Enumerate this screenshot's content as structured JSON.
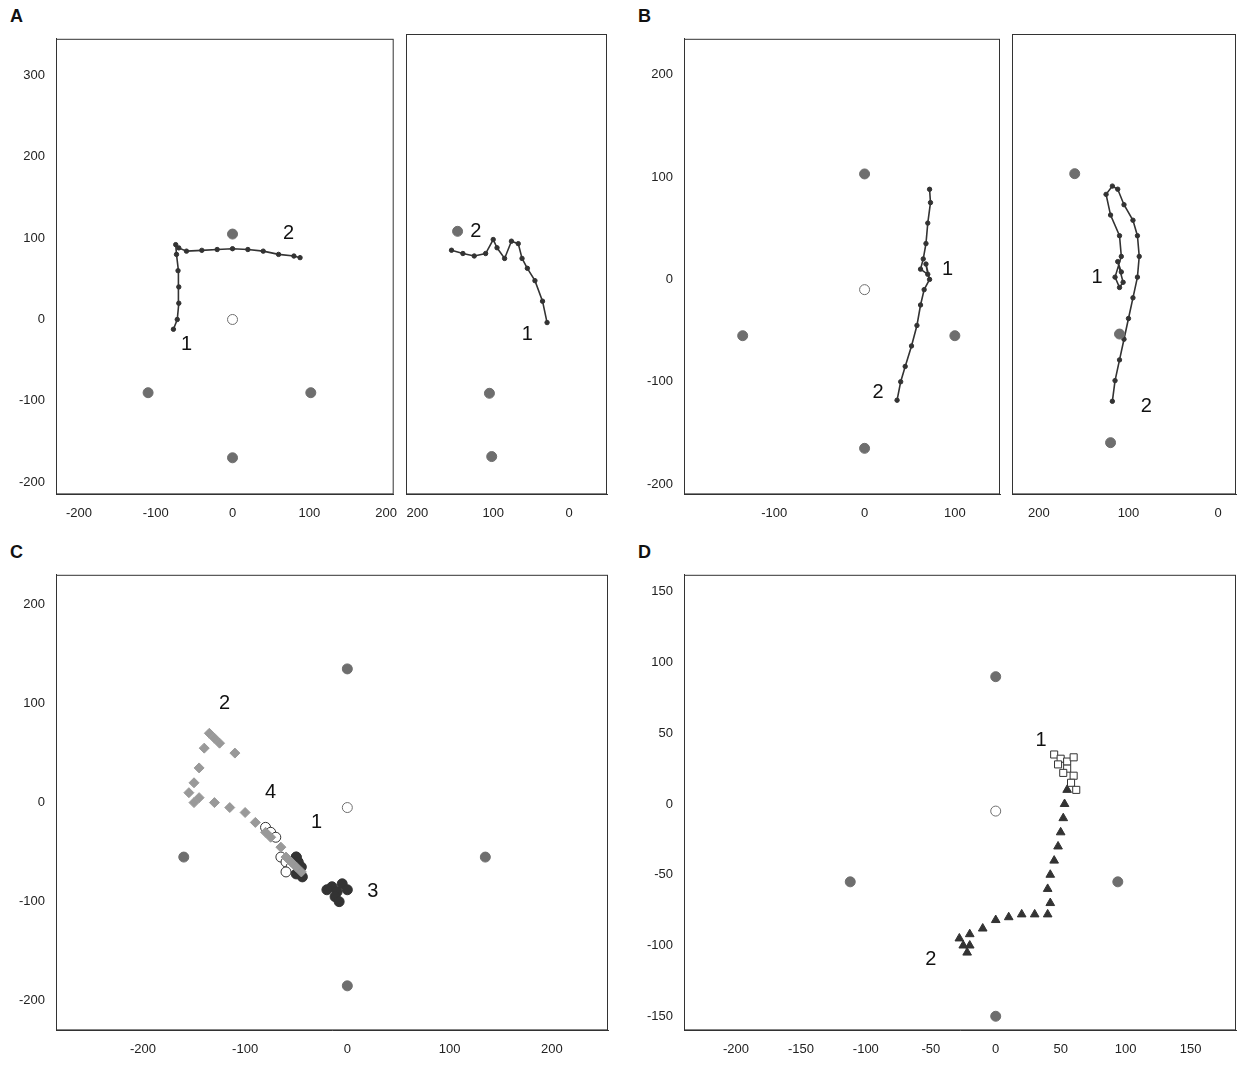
{
  "chart_data": [
    {
      "type": "scatter",
      "title": "A",
      "xlim": [
        -230,
        210
      ],
      "ylim": [
        -215,
        345
      ],
      "xticks": [
        -200,
        -100,
        0,
        100,
        200
      ],
      "yticks": [
        -200,
        -100,
        0,
        100,
        200,
        300
      ],
      "grid": false,
      "series": [
        {
          "color": "#6e6e6e",
          "marker": "circle",
          "line_style": "none",
          "x": [
            0,
            -110,
            102,
            0
          ],
          "y": [
            105,
            -90,
            -90,
            -170
          ]
        },
        {
          "color": "#6e6e6e",
          "marker": "open_circle",
          "line_style": "none",
          "x": [
            0
          ],
          "y": [
            0
          ]
        },
        {
          "color": "#333333",
          "marker": "circle",
          "line_style": "solid",
          "x": [
            -77,
            -72,
            -70,
            -70,
            -71,
            -73,
            -74,
            -70,
            -60,
            -40,
            -20,
            0,
            20,
            40,
            60,
            80,
            88
          ],
          "y": [
            -12,
            0,
            20,
            40,
            60,
            80,
            92,
            88,
            84,
            85,
            86,
            87,
            86,
            84,
            80,
            78,
            76
          ]
        }
      ],
      "annotations": [
        {
          "text": "1",
          "x": -60,
          "y": -31
        },
        {
          "text": "2",
          "x": 73,
          "y": 106
        }
      ]
    },
    {
      "type": "scatter",
      "xlim": [
        215,
        -50
      ],
      "ylim": [
        -215,
        345
      ],
      "xticks": [
        200,
        100,
        0
      ],
      "yticks": [
        -200,
        -100,
        0,
        100,
        200,
        300
      ],
      "grid": false,
      "tick_labels": "x",
      "series": [
        {
          "color": "#6e6e6e",
          "marker": "circle",
          "line_style": "none",
          "x": [
            147,
            105,
            102
          ],
          "y": [
            105,
            -92,
            -169
          ]
        },
        {
          "color": "#333333",
          "marker": "circle",
          "line_style": "solid",
          "x": [
            29,
            35,
            45,
            55,
            62,
            67,
            76,
            85,
            95,
            100,
            110,
            125,
            140,
            155
          ],
          "y": [
            -6,
            20,
            45,
            60,
            72,
            90,
            93,
            72,
            85,
            95,
            78,
            75,
            78,
            82
          ]
        }
      ],
      "annotations": [
        {
          "text": "1",
          "x": 55,
          "y": -20
        },
        {
          "text": "2",
          "x": 123,
          "y": 105
        }
      ]
    },
    {
      "type": "scatter",
      "title": "B",
      "xlim": [
        -200,
        150
      ],
      "ylim": [
        -210,
        235
      ],
      "xticks": [
        -100,
        0,
        100
      ],
      "yticks": [
        -200,
        -100,
        0,
        100,
        200
      ],
      "grid": false,
      "series": [
        {
          "color": "#6e6e6e",
          "marker": "circle",
          "line_style": "none",
          "x": [
            0,
            -135,
            100,
            0
          ],
          "y": [
            103,
            -55,
            -55,
            -165
          ]
        },
        {
          "color": "#6e6e6e",
          "marker": "open_circle",
          "line_style": "none",
          "x": [
            0
          ],
          "y": [
            -10
          ]
        },
        {
          "color": "#333333",
          "marker": "circle",
          "line_style": "solid",
          "x": [
            72,
            73,
            70,
            68,
            65,
            62,
            70,
            68,
            72,
            66,
            62,
            58,
            52,
            45,
            40,
            36
          ],
          "y": [
            88,
            75,
            55,
            35,
            20,
            10,
            5,
            15,
            0,
            -10,
            -25,
            -45,
            -65,
            -85,
            -100,
            -118
          ]
        }
      ],
      "annotations": [
        {
          "text": "1",
          "x": 92,
          "y": 10
        },
        {
          "text": "2",
          "x": 15,
          "y": -110
        }
      ]
    },
    {
      "type": "scatter",
      "xlim": [
        230,
        -20
      ],
      "ylim": [
        -210,
        235
      ],
      "xticks": [
        200,
        100,
        0
      ],
      "yticks": [
        -200,
        -100,
        0,
        100,
        200
      ],
      "grid": false,
      "tick_labels": "x",
      "series": [
        {
          "color": "#6e6e6e",
          "marker": "circle",
          "line_style": "none",
          "x": [
            160,
            110,
            120
          ],
          "y": [
            100,
            -55,
            -160
          ]
        },
        {
          "color": "#333333",
          "marker": "circle",
          "line_style": "solid",
          "x": [
            108,
            112,
            106,
            110,
            115,
            108,
            110,
            120,
            125,
            118,
            112,
            105,
            95,
            90,
            88,
            90,
            95,
            100,
            105,
            110,
            115,
            118
          ],
          "y": [
            5,
            15,
            -5,
            -10,
            0,
            20,
            40,
            60,
            80,
            88,
            85,
            70,
            55,
            40,
            20,
            0,
            -20,
            -40,
            -60,
            -80,
            -100,
            -120
          ]
        }
      ],
      "annotations": [
        {
          "text": "1",
          "x": 135,
          "y": 0
        },
        {
          "text": "2",
          "x": 80,
          "y": -125
        }
      ]
    },
    {
      "type": "scatter",
      "title": "C",
      "xlim": [
        -285,
        255
      ],
      "ylim": [
        -230,
        230
      ],
      "xticks": [
        -200,
        -100,
        0,
        100,
        200
      ],
      "yticks": [
        -200,
        -100,
        0,
        100,
        200
      ],
      "grid": false,
      "series": [
        {
          "color": "#6e6e6e",
          "marker": "circle",
          "line_style": "none",
          "x": [
            0,
            -160,
            135,
            0
          ],
          "y": [
            135,
            -55,
            -55,
            -185
          ]
        },
        {
          "color": "#6e6e6e",
          "marker": "open_circle",
          "line_style": "none",
          "x": [
            0
          ],
          "y": [
            -5
          ]
        },
        {
          "color": "#999999",
          "marker": "diamond",
          "line_style": "none",
          "x": [
            -135,
            -130,
            -125,
            -140,
            -110,
            -145,
            -150,
            -155,
            -150,
            -145,
            -130,
            -115,
            -100,
            -90,
            -80,
            -75,
            -65,
            -60,
            -55,
            -50,
            -45
          ],
          "y": [
            70,
            65,
            60,
            55,
            50,
            35,
            20,
            10,
            0,
            5,
            0,
            -5,
            -10,
            -20,
            -30,
            -35,
            -45,
            -55,
            -60,
            -65,
            -70
          ]
        },
        {
          "color": "#333333",
          "marker": "circle",
          "line_style": "none",
          "x": [
            -50,
            -48,
            -45,
            -47,
            -44,
            -50
          ],
          "y": [
            -55,
            -60,
            -65,
            -70,
            -75,
            -72
          ]
        },
        {
          "color": "#333333",
          "marker": "circle",
          "line_style": "none",
          "x": [
            -15,
            -10,
            -5,
            -12,
            -8,
            -20,
            0
          ],
          "y": [
            -85,
            -90,
            -82,
            -95,
            -100,
            -88,
            -88
          ]
        },
        {
          "color": "#333333",
          "marker": "open_circle",
          "line_style": "none",
          "x": [
            -80,
            -75,
            -70,
            -65,
            -60,
            -55,
            -60,
            -50
          ],
          "y": [
            -25,
            -30,
            -35,
            -55,
            -60,
            -65,
            -70,
            -55
          ]
        }
      ],
      "annotations": [
        {
          "text": "2",
          "x": -120,
          "y": 100
        },
        {
          "text": "4",
          "x": -75,
          "y": 10
        },
        {
          "text": "1",
          "x": -30,
          "y": -20
        },
        {
          "text": "3",
          "x": 25,
          "y": -90
        }
      ]
    },
    {
      "type": "scatter",
      "title": "D",
      "xlim": [
        -240,
        185
      ],
      "ylim": [
        -160,
        162
      ],
      "xticks": [
        -200,
        -150,
        -100,
        -50,
        0,
        50,
        100,
        150
      ],
      "yticks": [
        -150,
        -100,
        -50,
        0,
        50,
        100,
        150
      ],
      "grid": false,
      "series": [
        {
          "color": "#6e6e6e",
          "marker": "circle",
          "line_style": "none",
          "x": [
            0,
            -112,
            94,
            0
          ],
          "y": [
            90,
            -55,
            -55,
            -150
          ]
        },
        {
          "color": "#6e6e6e",
          "marker": "open_circle",
          "line_style": "none",
          "x": [
            0
          ],
          "y": [
            -5
          ]
        },
        {
          "color": "#333333",
          "marker": "open_square",
          "line_style": "none",
          "x": [
            45,
            50,
            55,
            60,
            55,
            60,
            58,
            62,
            52,
            48
          ],
          "y": [
            35,
            32,
            30,
            33,
            25,
            20,
            15,
            10,
            22,
            28
          ]
        },
        {
          "color": "#333333",
          "marker": "triangle",
          "line_style": "none",
          "x": [
            55,
            53,
            52,
            50,
            48,
            45,
            42,
            40,
            42,
            40,
            30,
            20,
            10,
            0,
            -10,
            -20,
            -25,
            -22,
            -28,
            -20
          ],
          "y": [
            10,
            0,
            -10,
            -20,
            -30,
            -40,
            -50,
            -60,
            -70,
            -78,
            -78,
            -78,
            -80,
            -82,
            -88,
            -92,
            -100,
            -105,
            -95,
            -100
          ]
        }
      ],
      "annotations": [
        {
          "text": "1",
          "x": 35,
          "y": 45
        },
        {
          "text": "2",
          "x": -50,
          "y": -110
        }
      ]
    }
  ]
}
